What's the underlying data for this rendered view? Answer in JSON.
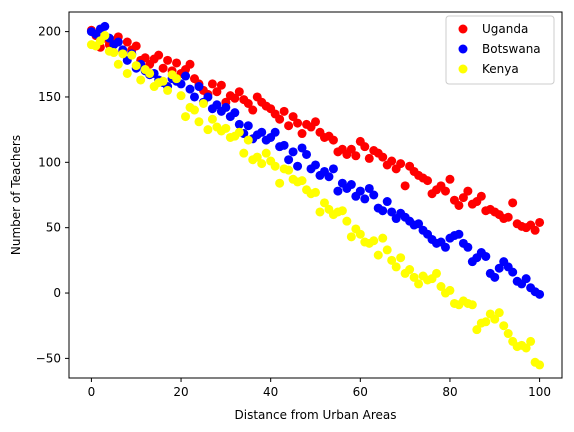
{
  "chart_data": {
    "type": "scatter",
    "xlabel": "Distance from Urban Areas",
    "ylabel": "Number of Teachers",
    "xlim": [
      -5,
      105
    ],
    "ylim": [
      -65,
      215
    ],
    "xticks": [
      0,
      20,
      40,
      60,
      80,
      100
    ],
    "yticks": [
      -50,
      0,
      50,
      100,
      150,
      200
    ],
    "grid": false,
    "legend": "top-right",
    "series": [
      {
        "name": "Uganda",
        "color": "#ff0000",
        "x": [
          0,
          1,
          2,
          3,
          4,
          5,
          6,
          7,
          8,
          9,
          10,
          11,
          12,
          13,
          14,
          15,
          16,
          17,
          18,
          19,
          20,
          21,
          22,
          23,
          24,
          25,
          26,
          27,
          28,
          29,
          30,
          31,
          32,
          33,
          34,
          35,
          36,
          37,
          38,
          39,
          40,
          41,
          42,
          43,
          44,
          45,
          46,
          47,
          48,
          49,
          50,
          51,
          52,
          53,
          54,
          55,
          56,
          57,
          58,
          59,
          60,
          61,
          62,
          63,
          64,
          65,
          66,
          67,
          68,
          69,
          70,
          71,
          72,
          73,
          74,
          75,
          76,
          77,
          78,
          79,
          80,
          81,
          82,
          83,
          84,
          85,
          86,
          87,
          88,
          89,
          90,
          91,
          92,
          93,
          94,
          95,
          96,
          97,
          98,
          99,
          100
        ],
        "y": [
          201,
          197,
          188,
          195,
          190,
          193,
          196,
          185,
          192,
          186,
          189,
          178,
          180,
          175,
          179,
          182,
          172,
          178,
          170,
          176,
          168,
          171,
          175,
          164,
          160,
          155,
          152,
          160,
          154,
          159,
          146,
          151,
          149,
          154,
          148,
          145,
          140,
          150,
          146,
          143,
          141,
          137,
          133,
          139,
          128,
          135,
          130,
          122,
          129,
          127,
          131,
          123,
          119,
          120,
          117,
          108,
          110,
          106,
          110,
          105,
          116,
          112,
          103,
          109,
          107,
          104,
          98,
          101,
          95,
          99,
          82,
          97,
          93,
          90,
          88,
          86,
          76,
          79,
          82,
          78,
          87,
          71,
          67,
          73,
          78,
          68,
          70,
          74,
          63,
          64,
          62,
          60,
          57,
          58,
          69,
          53,
          51,
          50,
          52,
          48,
          54
        ]
      },
      {
        "name": "Botswana",
        "color": "#0000ff",
        "x": [
          0,
          1,
          2,
          3,
          4,
          5,
          6,
          7,
          8,
          9,
          10,
          11,
          12,
          13,
          14,
          15,
          16,
          17,
          18,
          19,
          20,
          21,
          22,
          23,
          24,
          25,
          26,
          27,
          28,
          29,
          30,
          31,
          32,
          33,
          34,
          35,
          36,
          37,
          38,
          39,
          40,
          41,
          42,
          43,
          44,
          45,
          46,
          47,
          48,
          49,
          50,
          51,
          52,
          53,
          54,
          55,
          56,
          57,
          58,
          59,
          60,
          61,
          62,
          63,
          64,
          65,
          66,
          67,
          68,
          69,
          70,
          71,
          72,
          73,
          74,
          75,
          76,
          77,
          78,
          79,
          80,
          81,
          82,
          83,
          84,
          85,
          86,
          87,
          88,
          89,
          90,
          91,
          92,
          93,
          94,
          95,
          96,
          97,
          98,
          99,
          100
        ],
        "y": [
          200,
          198,
          202,
          204,
          195,
          190,
          192,
          186,
          178,
          183,
          172,
          175,
          170,
          167,
          168,
          163,
          161,
          158,
          164,
          162,
          160,
          166,
          156,
          150,
          158,
          146,
          150,
          141,
          144,
          139,
          142,
          135,
          138,
          129,
          122,
          128,
          118,
          121,
          123,
          117,
          119,
          123,
          112,
          113,
          102,
          108,
          97,
          111,
          106,
          95,
          98,
          90,
          93,
          89,
          95,
          78,
          84,
          80,
          83,
          74,
          78,
          72,
          80,
          75,
          65,
          63,
          70,
          62,
          57,
          61,
          58,
          55,
          52,
          53,
          48,
          45,
          41,
          38,
          39,
          35,
          42,
          44,
          45,
          38,
          35,
          24,
          27,
          31,
          28,
          15,
          12,
          19,
          24,
          20,
          16,
          9,
          7,
          11,
          4,
          1,
          -1
        ]
      },
      {
        "name": "Kenya",
        "color": "#ffff00",
        "x": [
          0,
          1,
          2,
          3,
          4,
          5,
          6,
          7,
          8,
          9,
          10,
          11,
          12,
          13,
          14,
          15,
          16,
          17,
          18,
          19,
          20,
          21,
          22,
          23,
          24,
          25,
          26,
          27,
          28,
          29,
          30,
          31,
          32,
          33,
          34,
          35,
          36,
          37,
          38,
          39,
          40,
          41,
          42,
          43,
          44,
          45,
          46,
          47,
          48,
          49,
          50,
          51,
          52,
          53,
          54,
          55,
          56,
          57,
          58,
          59,
          60,
          61,
          62,
          63,
          64,
          65,
          66,
          67,
          68,
          69,
          70,
          71,
          72,
          73,
          74,
          75,
          76,
          77,
          78,
          79,
          80,
          81,
          82,
          83,
          84,
          85,
          86,
          87,
          88,
          89,
          90,
          91,
          92,
          93,
          94,
          95,
          96,
          97,
          98,
          99,
          100
        ],
        "y": [
          190,
          189,
          193,
          197,
          185,
          184,
          175,
          183,
          168,
          182,
          174,
          163,
          171,
          168,
          158,
          161,
          162,
          155,
          167,
          164,
          151,
          135,
          142,
          140,
          131,
          145,
          125,
          133,
          127,
          124,
          126,
          119,
          120,
          123,
          107,
          117,
          102,
          104,
          99,
          107,
          101,
          97,
          84,
          95,
          94,
          87,
          85,
          86,
          79,
          76,
          77,
          62,
          69,
          64,
          60,
          62,
          63,
          55,
          43,
          49,
          45,
          39,
          38,
          40,
          29,
          42,
          33,
          25,
          20,
          27,
          15,
          18,
          12,
          7,
          13,
          10,
          11,
          15,
          5,
          0,
          2,
          -8,
          -9,
          -6,
          -8,
          -9,
          -28,
          -23,
          -22,
          -16,
          -20,
          -15,
          -25,
          -31,
          -37,
          -41,
          -40,
          -42,
          -37,
          -53,
          -55
        ]
      }
    ]
  }
}
